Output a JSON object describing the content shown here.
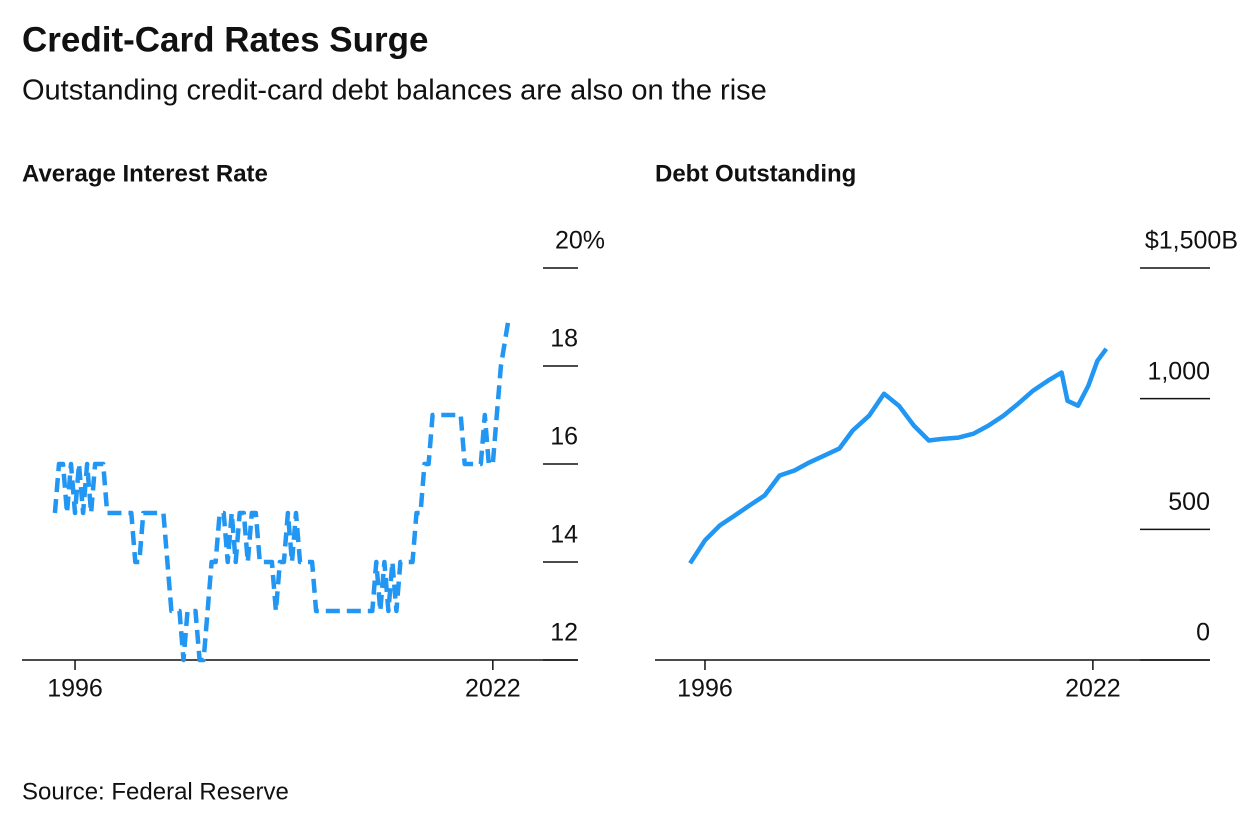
{
  "title": "Credit-Card Rates Surge",
  "subtitle": "Outstanding credit-card debt balances are also on the rise",
  "source": "Source: Federal Reserve",
  "chart_data": [
    {
      "type": "line",
      "title": "Average Interest Rate",
      "color": "#2196f3",
      "dashed": true,
      "x": [
        1994.75,
        1995,
        1995.25,
        1995.5,
        1995.75,
        1996,
        1996.25,
        1996.5,
        1996.75,
        1997,
        1997.25,
        1997.5,
        1997.75,
        1998,
        1998.25,
        1998.5,
        1998.75,
        1999,
        1999.25,
        1999.5,
        1999.75,
        2000,
        2000.25,
        2000.5,
        2000.75,
        2001,
        2001.25,
        2001.5,
        2001.75,
        2002,
        2002.25,
        2002.5,
        2002.75,
        2003,
        2003.25,
        2003.5,
        2003.75,
        2004,
        2004.25,
        2004.5,
        2004.75,
        2005,
        2005.25,
        2005.5,
        2005.75,
        2006,
        2006.25,
        2006.5,
        2006.75,
        2007,
        2007.25,
        2007.5,
        2007.75,
        2008,
        2008.25,
        2008.5,
        2008.75,
        2009,
        2009.25,
        2009.5,
        2009.75,
        2010,
        2010.25,
        2010.5,
        2010.75,
        2011,
        2011.25,
        2011.5,
        2011.75,
        2012,
        2012.25,
        2012.5,
        2012.75,
        2013,
        2013.25,
        2013.5,
        2013.75,
        2014,
        2014.25,
        2014.5,
        2014.75,
        2015,
        2015.25,
        2015.5,
        2015.75,
        2016,
        2016.25,
        2016.5,
        2016.75,
        2017,
        2017.25,
        2017.5,
        2017.75,
        2018,
        2018.25,
        2018.5,
        2018.75,
        2019,
        2019.25,
        2019.5,
        2019.75,
        2020,
        2020.25,
        2020.5,
        2020.75,
        2021,
        2021.25,
        2021.5,
        2021.75,
        2022,
        2022.25,
        2022.5,
        2022.75,
        2023
      ],
      "values": [
        15.0,
        16.0,
        16.0,
        15.0,
        16.0,
        15.0,
        16.0,
        15.0,
        16.0,
        15.0,
        16.0,
        16.0,
        16.0,
        15.0,
        15.0,
        15.0,
        15.0,
        15.0,
        15.0,
        15.0,
        14.0,
        14.0,
        15.0,
        15.0,
        15.0,
        15.0,
        15.0,
        15.0,
        14.0,
        13.0,
        13.0,
        13.0,
        12.0,
        13.0,
        13.0,
        13.0,
        12.0,
        12.0,
        13.0,
        14.0,
        14.0,
        15.0,
        15.0,
        14.0,
        15.0,
        14.0,
        15.0,
        15.0,
        14.0,
        15.0,
        15.0,
        14.0,
        14.0,
        14.0,
        14.0,
        13.0,
        14.0,
        14.0,
        15.0,
        14.0,
        15.0,
        14.0,
        14.0,
        14.0,
        14.0,
        13.0,
        13.0,
        13.0,
        13.0,
        13.0,
        13.0,
        13.0,
        13.0,
        13.0,
        13.0,
        13.0,
        13.0,
        13.0,
        13.0,
        13.0,
        14.0,
        13.0,
        14.0,
        13.0,
        14.0,
        13.0,
        14.0,
        14.0,
        14.0,
        14.0,
        15.0,
        15.0,
        16.0,
        16.0,
        17.0,
        17.0,
        17.0,
        17.0,
        17.0,
        17.0,
        17.0,
        17.0,
        16.0,
        16.0,
        16.0,
        16.0,
        16.0,
        17.0,
        16.0,
        16.0,
        17.0,
        18.0,
        18.5,
        19.0
      ],
      "xlim": [
        1992.7,
        2027.3
      ],
      "xticks": [
        1996,
        2022
      ],
      "ylim": [
        12,
        20
      ],
      "yticks": [
        12,
        14,
        16,
        18,
        {
          "value": 20,
          "label": "20%"
        }
      ]
    },
    {
      "type": "line",
      "title": "Debt Outstanding",
      "color": "#2196f3",
      "dashed": false,
      "x": [
        1995,
        1996,
        1997,
        1998,
        1999,
        2000,
        2001,
        2002,
        2003,
        2004,
        2005,
        2005.9,
        2007,
        2008,
        2009,
        2010,
        2011,
        2012,
        2013,
        2014,
        2015,
        2016,
        2017,
        2018,
        2019,
        2019.9,
        2020.3,
        2021,
        2021.7,
        2022.3,
        2022.9
      ],
      "values": [
        370,
        458,
        515,
        553,
        592,
        630,
        706,
        725,
        756,
        782,
        809,
        878,
        935,
        1019,
        973,
        897,
        840,
        847,
        851,
        866,
        897,
        935,
        981,
        1031,
        1069,
        1100,
        992,
        973,
        1050,
        1145,
        1191
      ],
      "xlim": [
        1992.65,
        2029.85
      ],
      "xticks": [
        1996,
        2022
      ],
      "ylim": [
        0,
        1500
      ],
      "yticks": [
        0,
        500,
        {
          "value": 1000,
          "label": "1,000"
        },
        {
          "value": 1500,
          "label": "$1,500B"
        }
      ]
    }
  ]
}
